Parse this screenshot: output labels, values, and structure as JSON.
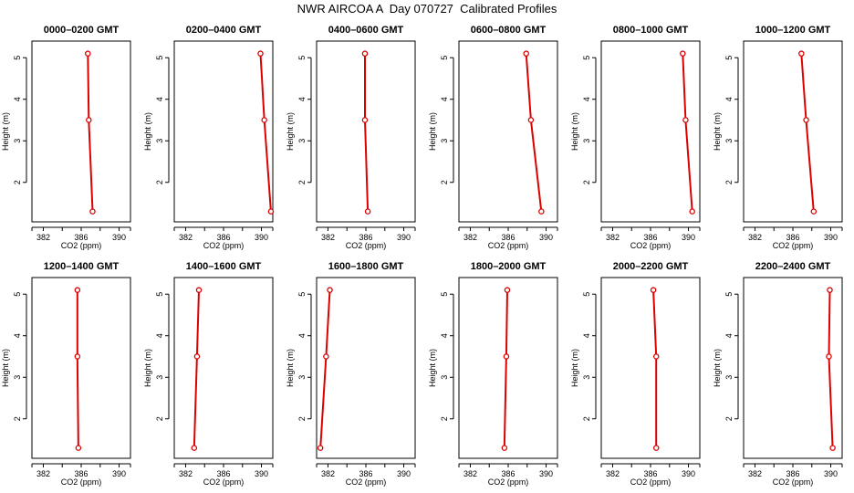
{
  "title": "NWR AIRCOA A  Day 070727  Calibrated Profiles",
  "colors": {
    "profile": "#dd0000",
    "axis": "#000000"
  },
  "chart_data": [
    {
      "type": "line",
      "title": "0000–0200 GMT",
      "xlabel": "CO2 (ppm)",
      "ylabel": "Height (m)",
      "xlim": [
        380.8,
        391.2
      ],
      "ylim": [
        1.05,
        5.4
      ],
      "x_ticks": [
        "382",
        "386",
        "390"
      ],
      "x_minor_ticks": [
        384,
        388
      ],
      "y_ticks": [
        "2",
        "3",
        "4",
        "5"
      ],
      "series": [
        {
          "x": [
            386.7,
            386.8,
            387.2
          ],
          "y": [
            5.1,
            3.5,
            1.3
          ]
        }
      ]
    },
    {
      "type": "line",
      "title": "0200–0400 GMT",
      "xlabel": "CO2 (ppm)",
      "ylabel": "Height (m)",
      "xlim": [
        380.8,
        391.2
      ],
      "ylim": [
        1.05,
        5.4
      ],
      "x_ticks": [
        "382",
        "386",
        "390"
      ],
      "x_minor_ticks": [
        384,
        388
      ],
      "y_ticks": [
        "2",
        "3",
        "4",
        "5"
      ],
      "series": [
        {
          "x": [
            389.9,
            390.3,
            391.0
          ],
          "y": [
            5.1,
            3.5,
            1.3
          ]
        }
      ]
    },
    {
      "type": "line",
      "title": "0400–0600 GMT",
      "xlabel": "CO2 (ppm)",
      "ylabel": "Height (m)",
      "xlim": [
        380.8,
        391.2
      ],
      "ylim": [
        1.05,
        5.4
      ],
      "x_ticks": [
        "382",
        "386",
        "390"
      ],
      "x_minor_ticks": [
        384,
        388
      ],
      "y_ticks": [
        "2",
        "3",
        "4",
        "5"
      ],
      "series": [
        {
          "x": [
            385.9,
            385.9,
            386.2
          ],
          "y": [
            5.1,
            3.5,
            1.3
          ]
        }
      ]
    },
    {
      "type": "line",
      "title": "0600–0800 GMT",
      "xlabel": "CO2 (ppm)",
      "ylabel": "Height (m)",
      "xlim": [
        380.8,
        391.2
      ],
      "ylim": [
        1.05,
        5.4
      ],
      "x_ticks": [
        "382",
        "386",
        "390"
      ],
      "x_minor_ticks": [
        384,
        388
      ],
      "y_ticks": [
        "2",
        "3",
        "4",
        "5"
      ],
      "series": [
        {
          "x": [
            387.9,
            388.4,
            389.5
          ],
          "y": [
            5.1,
            3.5,
            1.3
          ]
        }
      ]
    },
    {
      "type": "line",
      "title": "0800–1000 GMT",
      "xlabel": "CO2 (ppm)",
      "ylabel": "Height (m)",
      "xlim": [
        380.8,
        391.2
      ],
      "ylim": [
        1.05,
        5.4
      ],
      "x_ticks": [
        "382",
        "386",
        "390"
      ],
      "x_minor_ticks": [
        384,
        388
      ],
      "y_ticks": [
        "2",
        "3",
        "4",
        "5"
      ],
      "series": [
        {
          "x": [
            389.4,
            389.7,
            390.4
          ],
          "y": [
            5.1,
            3.5,
            1.3
          ]
        }
      ]
    },
    {
      "type": "line",
      "title": "1000–1200 GMT",
      "xlabel": "CO2 (ppm)",
      "ylabel": "Height (m)",
      "xlim": [
        380.8,
        391.2
      ],
      "ylim": [
        1.05,
        5.4
      ],
      "x_ticks": [
        "382",
        "386",
        "390"
      ],
      "x_minor_ticks": [
        384,
        388
      ],
      "y_ticks": [
        "2",
        "3",
        "4",
        "5"
      ],
      "series": [
        {
          "x": [
            386.9,
            387.4,
            388.2
          ],
          "y": [
            5.1,
            3.5,
            1.3
          ]
        }
      ]
    },
    {
      "type": "line",
      "title": "1200–1400 GMT",
      "xlabel": "CO2 (ppm)",
      "ylabel": "Height (m)",
      "xlim": [
        380.8,
        391.2
      ],
      "ylim": [
        1.05,
        5.4
      ],
      "x_ticks": [
        "382",
        "386",
        "390"
      ],
      "x_minor_ticks": [
        384,
        388
      ],
      "y_ticks": [
        "2",
        "3",
        "4",
        "5"
      ],
      "series": [
        {
          "x": [
            385.6,
            385.6,
            385.7
          ],
          "y": [
            5.1,
            3.5,
            1.3
          ]
        }
      ]
    },
    {
      "type": "line",
      "title": "1400–1600 GMT",
      "xlabel": "CO2 (ppm)",
      "ylabel": "Height (m)",
      "xlim": [
        380.8,
        391.2
      ],
      "ylim": [
        1.05,
        5.4
      ],
      "x_ticks": [
        "382",
        "386",
        "390"
      ],
      "x_minor_ticks": [
        384,
        388
      ],
      "y_ticks": [
        "2",
        "3",
        "4",
        "5"
      ],
      "series": [
        {
          "x": [
            383.4,
            383.2,
            382.9
          ],
          "y": [
            5.1,
            3.5,
            1.3
          ]
        }
      ]
    },
    {
      "type": "line",
      "title": "1600–1800 GMT",
      "xlabel": "CO2 (ppm)",
      "ylabel": "Height (m)",
      "xlim": [
        380.8,
        391.2
      ],
      "ylim": [
        1.05,
        5.4
      ],
      "x_ticks": [
        "382",
        "386",
        "390"
      ],
      "x_minor_ticks": [
        384,
        388
      ],
      "y_ticks": [
        "2",
        "3",
        "4",
        "5"
      ],
      "series": [
        {
          "x": [
            382.2,
            381.8,
            381.2
          ],
          "y": [
            5.1,
            3.5,
            1.3
          ]
        }
      ]
    },
    {
      "type": "line",
      "title": "1800–2000 GMT",
      "xlabel": "CO2 (ppm)",
      "ylabel": "Height (m)",
      "xlim": [
        380.8,
        391.2
      ],
      "ylim": [
        1.05,
        5.4
      ],
      "x_ticks": [
        "382",
        "386",
        "390"
      ],
      "x_minor_ticks": [
        384,
        388
      ],
      "y_ticks": [
        "2",
        "3",
        "4",
        "5"
      ],
      "series": [
        {
          "x": [
            385.9,
            385.8,
            385.6
          ],
          "y": [
            5.1,
            3.5,
            1.3
          ]
        }
      ]
    },
    {
      "type": "line",
      "title": "2000–2200 GMT",
      "xlabel": "CO2 (ppm)",
      "ylabel": "Height (m)",
      "xlim": [
        380.8,
        391.2
      ],
      "ylim": [
        1.05,
        5.4
      ],
      "x_ticks": [
        "382",
        "386",
        "390"
      ],
      "x_minor_ticks": [
        384,
        388
      ],
      "y_ticks": [
        "2",
        "3",
        "4",
        "5"
      ],
      "series": [
        {
          "x": [
            386.3,
            386.6,
            386.6
          ],
          "y": [
            5.1,
            3.5,
            1.3
          ]
        }
      ]
    },
    {
      "type": "line",
      "title": "2200–2400 GMT",
      "xlabel": "CO2 (ppm)",
      "ylabel": "Height (m)",
      "xlim": [
        380.8,
        391.2
      ],
      "ylim": [
        1.05,
        5.4
      ],
      "x_ticks": [
        "382",
        "386",
        "390"
      ],
      "x_minor_ticks": [
        384,
        388
      ],
      "y_ticks": [
        "2",
        "3",
        "4",
        "5"
      ],
      "series": [
        {
          "x": [
            389.9,
            389.8,
            390.2
          ],
          "y": [
            5.1,
            3.5,
            1.3
          ]
        }
      ]
    }
  ]
}
